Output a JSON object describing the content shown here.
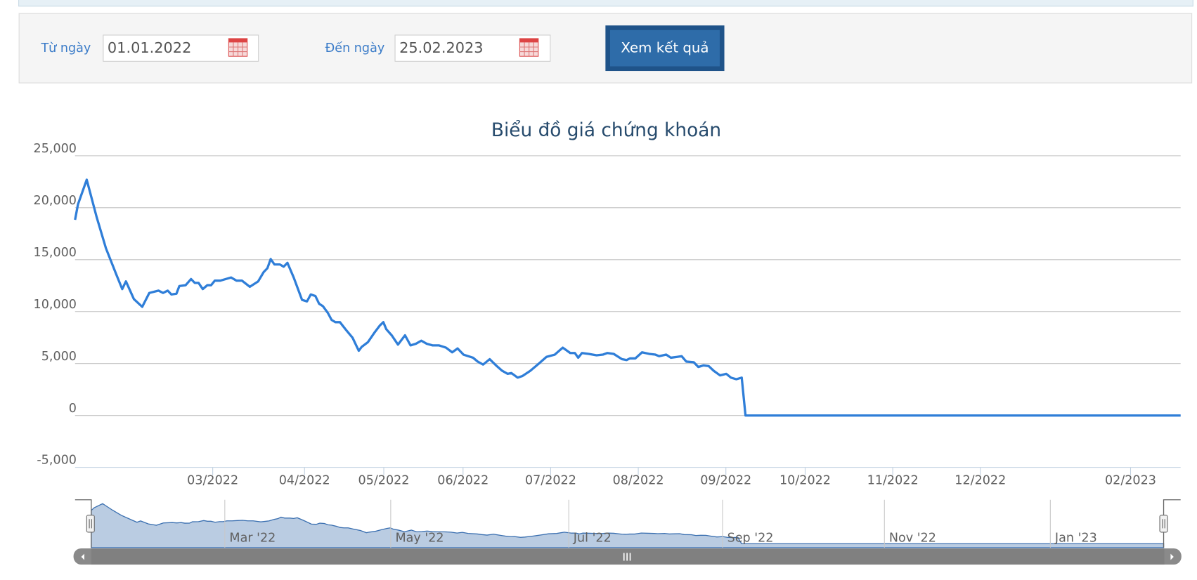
{
  "form": {
    "from_label": "Từ ngày",
    "from_value": "01.01.2022",
    "to_label": "Đến ngày",
    "to_value": "25.02.2023",
    "submit": "Xem kết quả"
  },
  "chart_data": {
    "type": "line",
    "title": "Biểu đồ giá chứng khoán",
    "x": [
      0,
      0.7,
      2.8,
      5.2,
      7.4,
      9.8,
      11.3,
      12.2,
      14.1,
      16.1,
      17.8,
      20,
      21.1,
      22.2,
      23.1,
      24.3,
      25,
      26.5,
      27.8,
      28.7,
      29.6,
      30.6,
      31.7,
      32.6,
      33.5,
      34.8,
      36.1,
      37.4,
      38.7,
      40,
      41.9,
      43.9,
      45.2,
      46.1,
      46.9,
      47.8,
      49.1,
      50,
      50.9,
      52.4,
      54.4,
      55.6,
      56.5,
      57.6,
      58.5,
      59.4,
      60.6,
      61.5,
      62.4,
      63.5,
      64.8,
      66.5,
      68,
      68.7,
      70.2,
      71.7,
      73.1,
      73.9,
      74.6,
      75.9,
      77.4,
      79.1,
      80.4,
      81.7,
      83,
      84.3,
      85.7,
      87.2,
      88.9,
      90.4,
      91.7,
      93.1,
      95.4,
      96.5,
      97.8,
      99.4,
      101.1,
      102.4,
      103.7,
      104.6,
      106.1,
      107.2,
      109.1,
      111.1,
      113,
      115,
      116.9,
      118.7,
      119.8,
      120.6,
      121.5,
      123.1,
      125,
      126.5,
      127.6,
      129.1,
      131.1,
      132.2,
      133,
      134.3,
      135.9,
      137.6,
      139.1,
      140,
      141.7,
      142.8,
      144.3,
      145.4,
      146.5,
      148.3,
      149.4,
      150.6,
      151.9,
      153.1,
      154.6,
      156.1,
      157.2,
      158.5,
      159.8,
      160.7,
      265
    ],
    "series": [
      {
        "color": "#2f7ed8",
        "values": [
          18840,
          20330,
          22700,
          19070,
          16100,
          13650,
          12170,
          12910,
          11200,
          10460,
          11800,
          12020,
          11800,
          12020,
          11650,
          11720,
          12460,
          12540,
          13130,
          12760,
          12760,
          12170,
          12540,
          12540,
          12980,
          12980,
          13130,
          13280,
          12980,
          12980,
          12390,
          12910,
          13800,
          14170,
          15060,
          14540,
          14540,
          14320,
          14690,
          13280,
          11130,
          10980,
          11650,
          11500,
          10760,
          10530,
          9870,
          9200,
          8980,
          8980,
          8310,
          7490,
          6230,
          6600,
          7050,
          7940,
          8680,
          8980,
          8310,
          7720,
          6820,
          7720,
          6750,
          6900,
          7200,
          6900,
          6750,
          6750,
          6530,
          6080,
          6450,
          5860,
          5560,
          5190,
          4900,
          5420,
          4750,
          4300,
          4010,
          4080,
          3640,
          3790,
          4300,
          4970,
          5640,
          5860,
          6530,
          6010,
          6010,
          5560,
          6010,
          5930,
          5790,
          5860,
          6010,
          5930,
          5420,
          5340,
          5490,
          5490,
          6080,
          5930,
          5860,
          5710,
          5860,
          5560,
          5640,
          5710,
          5190,
          5120,
          4670,
          4820,
          4750,
          4300,
          3860,
          4010,
          3640,
          3490,
          3640,
          0,
          0
        ]
      }
    ],
    "xlim": [
      0,
      265
    ],
    "xticks": [
      {
        "value": 33,
        "label": "03/2022"
      },
      {
        "value": 55,
        "label": "04/2022"
      },
      {
        "value": 74,
        "label": "05/2022"
      },
      {
        "value": 93,
        "label": "06/2022"
      },
      {
        "value": 114,
        "label": "07/2022"
      },
      {
        "value": 135,
        "label": "08/2022"
      },
      {
        "value": 156,
        "label": "09/2022"
      },
      {
        "value": 175,
        "label": "10/2022"
      },
      {
        "value": 196,
        "label": "11/2022"
      },
      {
        "value": 217,
        "label": "12/2022"
      },
      {
        "value": 253,
        "label": "02/2023"
      }
    ],
    "ylim": [
      -5000,
      25000
    ],
    "yticks": [
      {
        "value": -5000,
        "label": "-5,000"
      },
      0,
      {
        "value": 5000,
        "label": "5,000"
      },
      {
        "value": 10000,
        "label": "10,000"
      },
      {
        "value": 15000,
        "label": "15,000"
      },
      {
        "value": 20000,
        "label": "20,000"
      },
      {
        "value": 25000,
        "label": "25,000"
      }
    ],
    "grid": true,
    "navigator": {
      "color": "#b3c6df",
      "xticks": [
        {
          "value": 33,
          "label": "Mar '22"
        },
        {
          "value": 74,
          "label": "May '22"
        },
        {
          "value": 118,
          "label": "Jul '22"
        },
        {
          "value": 156,
          "label": "Sep '22"
        },
        {
          "value": 196,
          "label": "Nov '22"
        },
        {
          "value": 237,
          "label": "Jan '23"
        }
      ]
    }
  }
}
